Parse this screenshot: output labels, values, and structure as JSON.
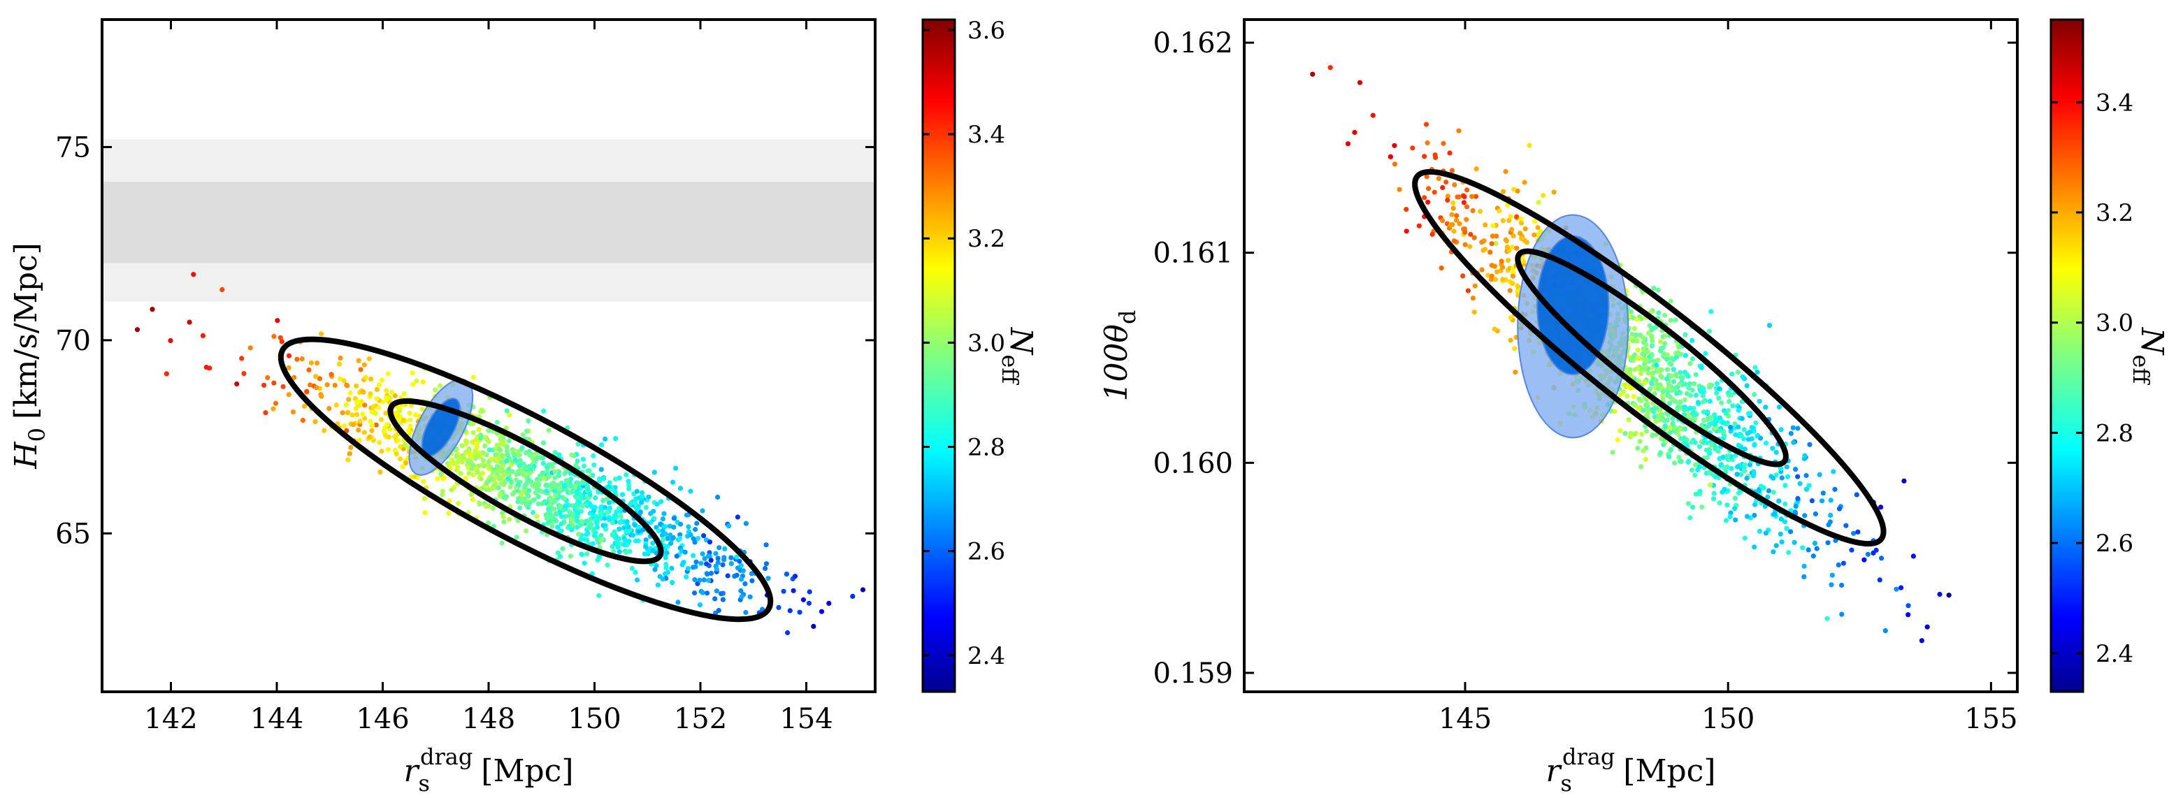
{
  "chart_data": [
    {
      "type": "scatter",
      "panel": "left",
      "title": "",
      "xlabel": {
        "main": "r",
        "sub": "s",
        "sup": "drag",
        "unit": "[Mpc]"
      },
      "ylabel": {
        "main": "H",
        "sub": "0",
        "unit": "[km/s/Mpc]"
      },
      "xlim": [
        140.7,
        155.3
      ],
      "ylim": [
        60.9,
        78.3
      ],
      "xticks": [
        142,
        144,
        146,
        148,
        150,
        152,
        154
      ],
      "xtick_labels": [
        "142",
        "144",
        "146",
        "148",
        "150",
        "152",
        "154"
      ],
      "yticks": [
        65,
        70,
        75
      ],
      "ytick_labels": [
        "65",
        "70",
        "75"
      ],
      "bands": [
        {
          "name": "1sigma",
          "range": [
            72.0,
            74.1
          ],
          "color": "#dcdcdc"
        },
        {
          "name": "2sigma",
          "range": [
            71.0,
            75.2
          ],
          "color": "#f0f0f0"
        }
      ],
      "scatter": {
        "color_by": "Neff",
        "n_points": 1500,
        "center": {
          "x": 148.7,
          "y": 66.4,
          "c": 2.96
        },
        "spread": {
          "x": 2.1,
          "y": 1.4,
          "c": 0.17
        },
        "corr_xy": -0.88,
        "corr_xc": -0.95,
        "outliers": [
          {
            "x": 141.65,
            "y": 70.8,
            "c": 3.58
          }
        ]
      },
      "contours": [
        {
          "level": "68%",
          "cx": 148.7,
          "cy": 66.35,
          "a": 2.9,
          "b": 0.64,
          "angle_deg": -29
        },
        {
          "level": "95%",
          "cx": 148.7,
          "cy": 66.4,
          "a": 5.2,
          "b": 1.15,
          "angle_deg": -28
        }
      ],
      "filled_ellipses": [
        {
          "level": "95%",
          "cx": 147.1,
          "cy": 67.75,
          "a": 1.0,
          "b": 0.42,
          "angle_deg": 62,
          "color": "#7aaaf0",
          "alpha": 0.75
        },
        {
          "level": "68%",
          "cx": 147.1,
          "cy": 67.75,
          "a": 0.6,
          "b": 0.25,
          "angle_deg": 62,
          "color": "#0066dd",
          "alpha": 0.9
        }
      ],
      "colorbar": {
        "label": {
          "main": "N",
          "sub": "eff"
        },
        "range": [
          2.33,
          3.62
        ],
        "ticks": [
          2.4,
          2.6,
          2.8,
          3.0,
          3.2,
          3.4,
          3.6
        ],
        "tick_labels": [
          "2.4",
          "2.6",
          "2.8",
          "3.0",
          "3.2",
          "3.4",
          "3.6"
        ]
      }
    },
    {
      "type": "scatter",
      "panel": "right",
      "title": "",
      "xlabel": {
        "main": "r",
        "sub": "s",
        "sup": "drag",
        "unit": "[Mpc]"
      },
      "ylabel": {
        "main": "100θ",
        "sub": "d",
        "unit": ""
      },
      "xlim": [
        140.8,
        155.5
      ],
      "ylim": [
        0.15891,
        0.16211
      ],
      "xticks": [
        145,
        150,
        155
      ],
      "xtick_labels": [
        "145",
        "150",
        "155"
      ],
      "yticks": [
        0.159,
        0.16,
        0.161,
        0.162
      ],
      "ytick_labels": [
        "0.159",
        "0.160",
        "0.161",
        "0.162"
      ],
      "bands": [],
      "scatter": {
        "color_by": "Neff",
        "n_points": 1500,
        "center": {
          "x": 148.3,
          "y": 0.16045,
          "c": 2.96
        },
        "spread": {
          "x": 1.9,
          "y": 0.00043,
          "c": 0.17
        },
        "corr_xy": -0.9,
        "corr_xc": -0.95,
        "outliers": [
          {
            "x": 142.1,
            "y": 0.16185,
            "c": 3.5
          },
          {
            "x": 143.0,
            "y": 0.16181,
            "c": 3.45
          },
          {
            "x": 154.2,
            "y": 0.15937,
            "c": 2.35
          }
        ]
      },
      "contours": [
        {
          "level": "68%",
          "cx": 148.55,
          "cy": 0.1605,
          "a": 3.2,
          "b": 0.6,
          "angle_deg": -38
        },
        {
          "level": "95%",
          "cx": 148.5,
          "cy": 0.1605,
          "a": 5.6,
          "b": 1.0,
          "angle_deg": -38
        }
      ],
      "filled_ellipses": [
        {
          "level": "95%",
          "cx": 147.05,
          "cy": 0.16065,
          "a": 1.05,
          "b": 0.00053,
          "angle_deg": 0,
          "color": "#7aaaf0",
          "alpha": 0.75
        },
        {
          "level": "68%",
          "cx": 147.05,
          "cy": 0.16075,
          "a": 0.68,
          "b": 0.00033,
          "angle_deg": 0,
          "color": "#0066dd",
          "alpha": 0.9
        }
      ],
      "colorbar": {
        "label": {
          "main": "N",
          "sub": "eff"
        },
        "range": [
          2.33,
          3.55
        ],
        "ticks": [
          2.4,
          2.6,
          2.8,
          3.0,
          3.2,
          3.4
        ],
        "tick_labels": [
          "2.4",
          "2.6",
          "2.8",
          "3.0",
          "3.2",
          "3.4"
        ]
      }
    }
  ]
}
